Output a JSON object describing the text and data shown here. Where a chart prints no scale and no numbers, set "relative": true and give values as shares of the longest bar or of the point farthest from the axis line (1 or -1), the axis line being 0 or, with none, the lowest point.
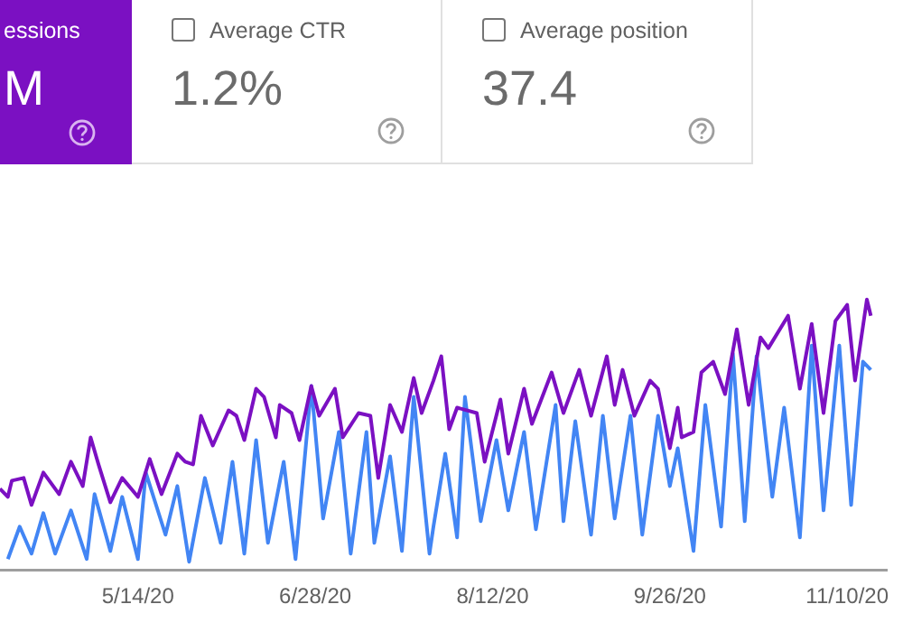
{
  "chart_data": {
    "type": "line",
    "relative": true,
    "marker": "none",
    "annotations": [
      "essions",
      "M",
      "Average CTR",
      "1.2%",
      "Average position",
      "37.4"
    ],
    "xlim": [
      "2020-04-09",
      "2020-11-20"
    ],
    "xticks": [
      {
        "value": "2020-05-14",
        "label": "5/14/20"
      },
      {
        "value": "2020-06-28",
        "label": "6/28/20"
      },
      {
        "value": "2020-08-12",
        "label": "8/12/20"
      },
      {
        "value": "2020-09-26",
        "label": "9/26/20"
      },
      {
        "value": "2020-11-10",
        "label": "11/10/20"
      }
    ],
    "series": [
      {
        "color": "#7b10c2",
        "x": [
          "2020-04-09",
          "2020-04-11",
          "2020-04-12",
          "2020-04-15",
          "2020-04-17",
          "2020-04-20",
          "2020-04-24",
          "2020-04-27",
          "2020-04-30",
          "2020-05-02",
          "2020-05-04",
          "2020-05-07",
          "2020-05-10",
          "2020-05-14",
          "2020-05-17",
          "2020-05-20",
          "2020-05-24",
          "2020-05-26",
          "2020-05-28",
          "2020-05-30",
          "2020-06-02",
          "2020-06-06",
          "2020-06-08",
          "2020-06-10",
          "2020-06-13",
          "2020-06-15",
          "2020-06-18",
          "2020-06-19",
          "2020-06-22",
          "2020-06-24",
          "2020-06-27",
          "2020-06-29",
          "2020-07-03",
          "2020-07-05",
          "2020-07-09",
          "2020-07-12",
          "2020-07-14",
          "2020-07-17",
          "2020-07-20",
          "2020-07-23",
          "2020-07-25",
          "2020-07-28",
          "2020-07-30",
          "2020-08-01",
          "2020-08-03",
          "2020-08-08",
          "2020-08-10",
          "2020-08-14",
          "2020-08-16",
          "2020-08-20",
          "2020-08-22",
          "2020-08-27",
          "2020-08-30",
          "2020-09-03",
          "2020-09-06",
          "2020-09-10",
          "2020-09-12",
          "2020-09-14",
          "2020-09-17",
          "2020-09-21",
          "2020-09-23",
          "2020-09-26",
          "2020-09-28",
          "2020-09-29",
          "2020-10-02",
          "2020-10-04",
          "2020-10-07",
          "2020-10-10",
          "2020-10-13",
          "2020-10-16",
          "2020-10-19",
          "2020-10-21",
          "2020-10-26",
          "2020-10-29",
          "2020-11-01",
          "2020-11-04",
          "2020-11-07",
          "2020-11-10",
          "2020-11-12",
          "2020-11-15",
          "2020-11-16"
        ],
        "values": [
          0.3,
          0.27,
          0.33,
          0.34,
          0.24,
          0.36,
          0.28,
          0.4,
          0.31,
          0.49,
          0.39,
          0.25,
          0.34,
          0.27,
          0.41,
          0.28,
          0.43,
          0.4,
          0.39,
          0.57,
          0.46,
          0.59,
          0.57,
          0.48,
          0.67,
          0.64,
          0.49,
          0.61,
          0.58,
          0.48,
          0.68,
          0.57,
          0.67,
          0.49,
          0.58,
          0.57,
          0.34,
          0.61,
          0.51,
          0.71,
          0.58,
          0.7,
          0.79,
          0.52,
          0.6,
          0.58,
          0.4,
          0.63,
          0.43,
          0.67,
          0.54,
          0.73,
          0.58,
          0.74,
          0.57,
          0.79,
          0.61,
          0.74,
          0.57,
          0.7,
          0.67,
          0.45,
          0.6,
          0.49,
          0.51,
          0.73,
          0.77,
          0.65,
          0.89,
          0.61,
          0.86,
          0.82,
          0.94,
          0.67,
          0.91,
          0.58,
          0.92,
          0.98,
          0.7,
          1.0,
          0.94
        ]
      },
      {
        "color": "#4285f4",
        "x": [
          "2020-04-11",
          "2020-04-14",
          "2020-04-17",
          "2020-04-20",
          "2020-04-23",
          "2020-04-27",
          "2020-05-01",
          "2020-05-03",
          "2020-05-07",
          "2020-05-10",
          "2020-05-14",
          "2020-05-16",
          "2020-05-21",
          "2020-05-24",
          "2020-05-27",
          "2020-05-31",
          "2020-06-04",
          "2020-06-07",
          "2020-06-10",
          "2020-06-13",
          "2020-06-16",
          "2020-06-20",
          "2020-06-23",
          "2020-06-27",
          "2020-06-30",
          "2020-07-04",
          "2020-07-07",
          "2020-07-11",
          "2020-07-13",
          "2020-07-17",
          "2020-07-20",
          "2020-07-23",
          "2020-07-27",
          "2020-07-28",
          "2020-07-31",
          "2020-08-03",
          "2020-08-05",
          "2020-08-09",
          "2020-08-13",
          "2020-08-16",
          "2020-08-20",
          "2020-08-23",
          "2020-08-28",
          "2020-08-30",
          "2020-09-02",
          "2020-09-06",
          "2020-09-09",
          "2020-09-12",
          "2020-09-16",
          "2020-09-19",
          "2020-09-23",
          "2020-09-26",
          "2020-09-28",
          "2020-10-02",
          "2020-10-05",
          "2020-10-09",
          "2020-10-12",
          "2020-10-15",
          "2020-10-18",
          "2020-10-22",
          "2020-10-25",
          "2020-10-29",
          "2020-11-01",
          "2020-11-04",
          "2020-11-08",
          "2020-11-11",
          "2020-11-14",
          "2020-11-16"
        ],
        "values": [
          0.04,
          0.16,
          0.06,
          0.21,
          0.06,
          0.22,
          0.04,
          0.28,
          0.07,
          0.27,
          0.04,
          0.36,
          0.13,
          0.31,
          0.03,
          0.34,
          0.1,
          0.4,
          0.06,
          0.48,
          0.1,
          0.4,
          0.04,
          0.68,
          0.19,
          0.51,
          0.06,
          0.51,
          0.1,
          0.42,
          0.07,
          0.64,
          0.06,
          0.16,
          0.43,
          0.12,
          0.64,
          0.18,
          0.48,
          0.22,
          0.51,
          0.15,
          0.61,
          0.18,
          0.55,
          0.13,
          0.57,
          0.19,
          0.57,
          0.13,
          0.57,
          0.31,
          0.45,
          0.07,
          0.61,
          0.16,
          0.8,
          0.18,
          0.79,
          0.27,
          0.6,
          0.12,
          0.83,
          0.22,
          0.83,
          0.24,
          0.77,
          0.74
        ]
      }
    ]
  }
}
